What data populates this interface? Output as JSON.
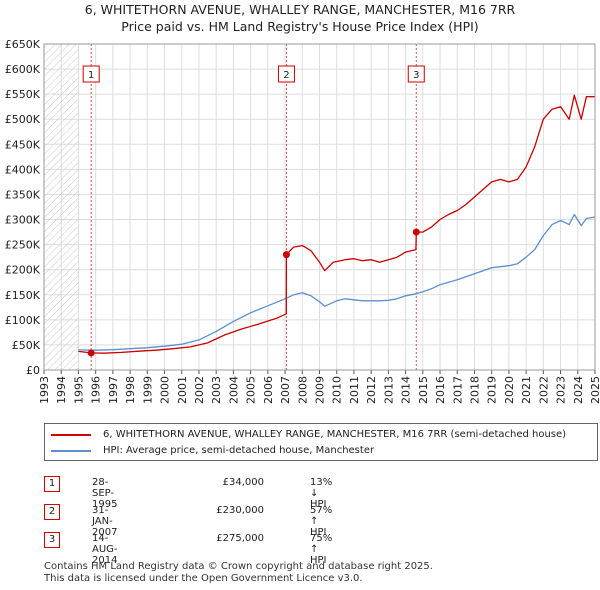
{
  "title": {
    "line1": "6, WHITETHORN AVENUE, WHALLEY RANGE, MANCHESTER, M16 7RR",
    "line2": "Price paid vs. HM Land Registry's House Price Index (HPI)"
  },
  "colors": {
    "price": "#cc0000",
    "hpi": "#5b8fd0",
    "grid": "#dddddd",
    "hatch": "#cccccc"
  },
  "chart_data": {
    "type": "line",
    "xlim": [
      1993,
      2025
    ],
    "ylim": [
      0,
      650000
    ],
    "x_ticks": [
      "1993",
      "1994",
      "1995",
      "1996",
      "1997",
      "1998",
      "1999",
      "2000",
      "2001",
      "2002",
      "2003",
      "2004",
      "2005",
      "2006",
      "2007",
      "2008",
      "2009",
      "2010",
      "2011",
      "2012",
      "2013",
      "2014",
      "2015",
      "2016",
      "2017",
      "2018",
      "2019",
      "2020",
      "2021",
      "2022",
      "2023",
      "2024",
      "2025"
    ],
    "y_ticks": [
      {
        "value": 0,
        "label": "£0"
      },
      {
        "value": 50000,
        "label": "£50K"
      },
      {
        "value": 100000,
        "label": "£100K"
      },
      {
        "value": 150000,
        "label": "£150K"
      },
      {
        "value": 200000,
        "label": "£200K"
      },
      {
        "value": 250000,
        "label": "£250K"
      },
      {
        "value": 300000,
        "label": "£300K"
      },
      {
        "value": 350000,
        "label": "£350K"
      },
      {
        "value": 400000,
        "label": "£400K"
      },
      {
        "value": 450000,
        "label": "£450K"
      },
      {
        "value": 500000,
        "label": "£500K"
      },
      {
        "value": 550000,
        "label": "£550K"
      },
      {
        "value": 600000,
        "label": "£600K"
      },
      {
        "value": 650000,
        "label": "£650K"
      }
    ],
    "hatch_until": 1995,
    "series": [
      {
        "name": "6, WHITETHORN AVENUE, WHALLEY RANGE, MANCHESTER, M16 7RR (semi-detached house)",
        "color": "#cc0000",
        "points": [
          [
            1995.0,
            37000
          ],
          [
            1995.74,
            34000
          ],
          [
            1996.5,
            33500
          ],
          [
            1997.5,
            35000
          ],
          [
            1998.5,
            37500
          ],
          [
            1999.5,
            39500
          ],
          [
            2000.5,
            42500
          ],
          [
            2001.5,
            46000
          ],
          [
            2002.5,
            54000
          ],
          [
            2003.5,
            70000
          ],
          [
            2004.5,
            82000
          ],
          [
            2005.5,
            92000
          ],
          [
            2006.5,
            103000
          ],
          [
            2007.07,
            112000
          ],
          [
            2007.08,
            230000
          ],
          [
            2007.5,
            245000
          ],
          [
            2008.0,
            248000
          ],
          [
            2008.5,
            238000
          ],
          [
            2009.0,
            215000
          ],
          [
            2009.3,
            198000
          ],
          [
            2009.8,
            215000
          ],
          [
            2010.5,
            220000
          ],
          [
            2011.0,
            222000
          ],
          [
            2011.5,
            218000
          ],
          [
            2012.0,
            220000
          ],
          [
            2012.5,
            215000
          ],
          [
            2013.0,
            220000
          ],
          [
            2013.5,
            225000
          ],
          [
            2014.0,
            235000
          ],
          [
            2014.6,
            240000
          ],
          [
            2014.62,
            275000
          ],
          [
            2015.0,
            275000
          ],
          [
            2015.5,
            285000
          ],
          [
            2016.0,
            300000
          ],
          [
            2016.5,
            310000
          ],
          [
            2017.0,
            318000
          ],
          [
            2017.5,
            330000
          ],
          [
            2018.0,
            345000
          ],
          [
            2018.5,
            360000
          ],
          [
            2019.0,
            375000
          ],
          [
            2019.5,
            380000
          ],
          [
            2020.0,
            375000
          ],
          [
            2020.5,
            380000
          ],
          [
            2021.0,
            405000
          ],
          [
            2021.5,
            445000
          ],
          [
            2022.0,
            500000
          ],
          [
            2022.5,
            520000
          ],
          [
            2023.0,
            525000
          ],
          [
            2023.5,
            500000
          ],
          [
            2023.8,
            548000
          ],
          [
            2024.2,
            500000
          ],
          [
            2024.5,
            545000
          ],
          [
            2025.0,
            545000
          ]
        ]
      },
      {
        "name": "HPI: Average price, semi-detached house, Manchester",
        "color": "#5b8fd0",
        "points": [
          [
            1995.0,
            40000
          ],
          [
            1996.0,
            39500
          ],
          [
            1997.0,
            40500
          ],
          [
            1998.0,
            42500
          ],
          [
            1999.0,
            44500
          ],
          [
            2000.0,
            47500
          ],
          [
            2001.0,
            51500
          ],
          [
            2002.0,
            60000
          ],
          [
            2003.0,
            77000
          ],
          [
            2004.0,
            97000
          ],
          [
            2005.0,
            114000
          ],
          [
            2006.0,
            128000
          ],
          [
            2007.0,
            142000
          ],
          [
            2007.5,
            150000
          ],
          [
            2008.0,
            154000
          ],
          [
            2008.5,
            148000
          ],
          [
            2009.0,
            136000
          ],
          [
            2009.3,
            127000
          ],
          [
            2010.0,
            138000
          ],
          [
            2010.5,
            142000
          ],
          [
            2011.0,
            140000
          ],
          [
            2011.5,
            138000
          ],
          [
            2012.0,
            138000
          ],
          [
            2012.5,
            138000
          ],
          [
            2013.0,
            139000
          ],
          [
            2013.5,
            142000
          ],
          [
            2014.0,
            148000
          ],
          [
            2014.6,
            152000
          ],
          [
            2015.0,
            156000
          ],
          [
            2015.5,
            162000
          ],
          [
            2016.0,
            170000
          ],
          [
            2016.5,
            175000
          ],
          [
            2017.0,
            180000
          ],
          [
            2017.5,
            186000
          ],
          [
            2018.0,
            192000
          ],
          [
            2018.5,
            198000
          ],
          [
            2019.0,
            204000
          ],
          [
            2019.5,
            206000
          ],
          [
            2020.0,
            208000
          ],
          [
            2020.5,
            212000
          ],
          [
            2021.0,
            225000
          ],
          [
            2021.5,
            240000
          ],
          [
            2022.0,
            268000
          ],
          [
            2022.5,
            290000
          ],
          [
            2023.0,
            298000
          ],
          [
            2023.5,
            290000
          ],
          [
            2023.8,
            310000
          ],
          [
            2024.2,
            288000
          ],
          [
            2024.5,
            302000
          ],
          [
            2025.0,
            305000
          ]
        ]
      }
    ],
    "markers": [
      {
        "label": "1",
        "x": 1995.74,
        "y": 34000
      },
      {
        "label": "2",
        "x": 2007.08,
        "y": 230000
      },
      {
        "label": "3",
        "x": 2014.62,
        "y": 275000
      }
    ]
  },
  "legend": {
    "price_label": "6, WHITETHORN AVENUE, WHALLEY RANGE, MANCHESTER, M16 7RR (semi-detached house)",
    "hpi_label": "HPI: Average price, semi-detached house, Manchester"
  },
  "sales": [
    {
      "num": "1",
      "date": "28-SEP-1995",
      "price": "£34,000",
      "hpi": "13% ↓ HPI"
    },
    {
      "num": "2",
      "date": "31-JAN-2007",
      "price": "£230,000",
      "hpi": "57% ↑ HPI"
    },
    {
      "num": "3",
      "date": "14-AUG-2014",
      "price": "£275,000",
      "hpi": "75% ↑ HPI"
    }
  ],
  "footer": {
    "line1": "Contains HM Land Registry data © Crown copyright and database right 2025.",
    "line2": "This data is licensed under the Open Government Licence v3.0."
  }
}
